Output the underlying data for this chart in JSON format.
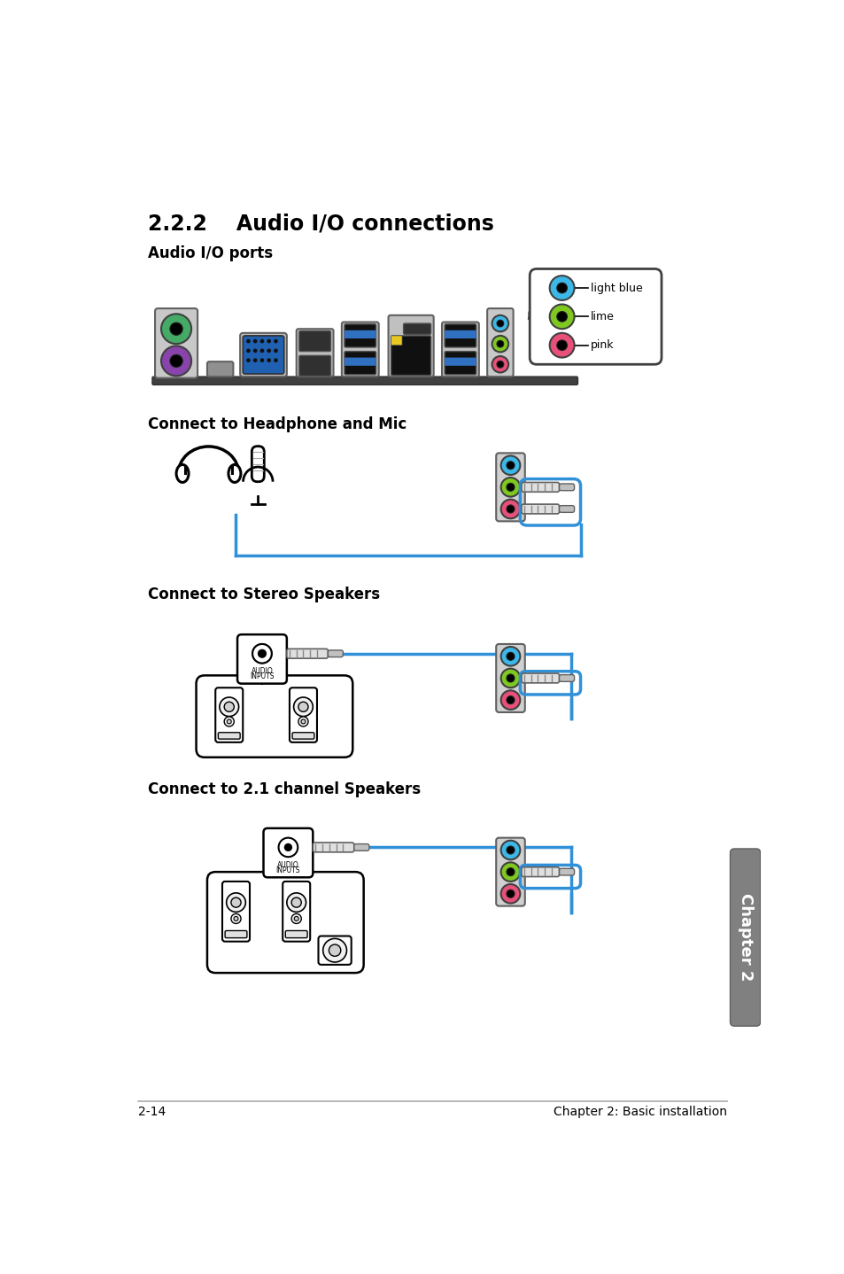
{
  "title": "2.2.2    Audio I/O connections",
  "subtitle1": "Audio I/O ports",
  "subtitle2": "Connect to Headphone and Mic",
  "subtitle3": "Connect to Stereo Speakers",
  "subtitle4": "Connect to 2.1 channel Speakers",
  "footer_left": "2-14",
  "footer_right": "Chapter 2: Basic installation",
  "colors": {
    "light_blue": "#3CB8E8",
    "lime": "#7EC820",
    "pink": "#E8507A",
    "cable_blue": "#3090D8",
    "black": "#000000",
    "white": "#FFFFFF",
    "gray_panel": "#B0B0B0",
    "gray_dark": "#505050",
    "gray_mid": "#888888",
    "gray_light": "#D8D8D8",
    "purple": "#8844AA",
    "green_ps2": "#44AA66",
    "yellow": "#E8C820",
    "usb_blue": "#3070C0",
    "outline": "#404040",
    "tab_bg": "#808080"
  }
}
